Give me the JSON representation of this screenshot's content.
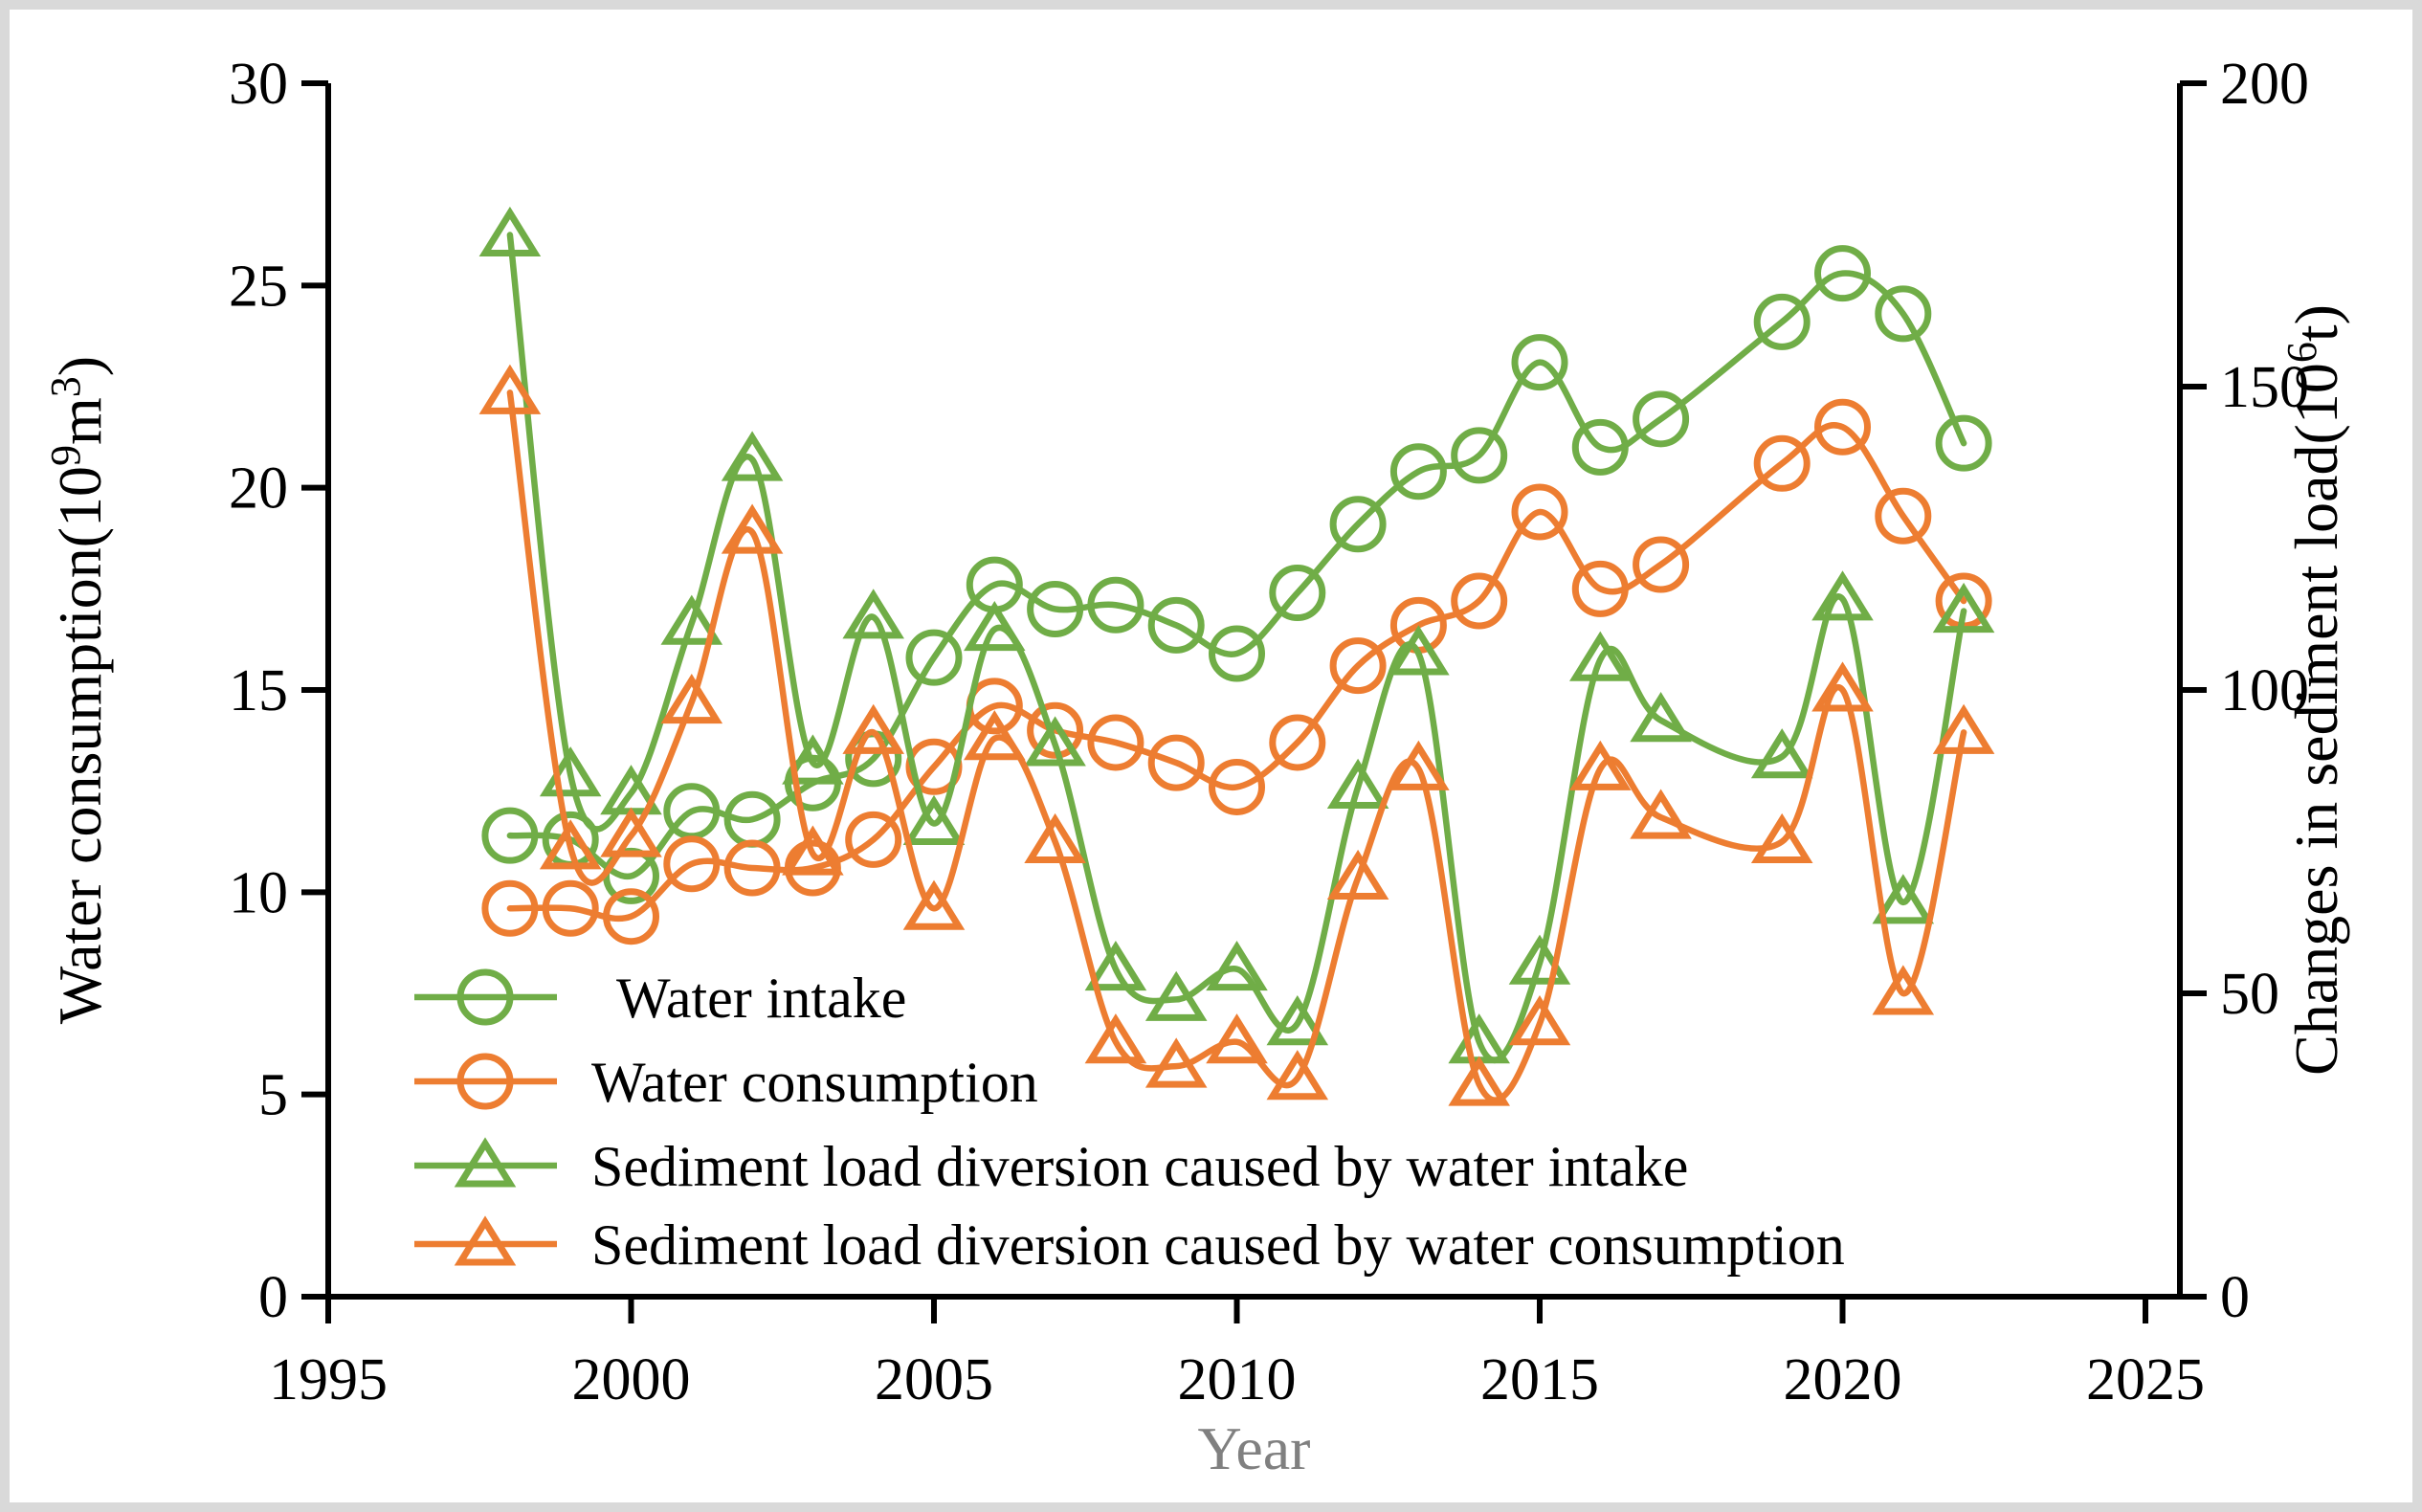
{
  "figure": {
    "border_color": "#d9d9d9",
    "background": "#ffffff",
    "text_color": "#000000",
    "xlabel_color": "#808080"
  },
  "chart_data": {
    "type": "line",
    "title": "",
    "x": [
      1998,
      1999,
      2000,
      2001,
      2002,
      2003,
      2004,
      2005,
      2006,
      2007,
      2008,
      2009,
      2010,
      2011,
      2012,
      2013,
      2014,
      2015,
      2016,
      2017,
      2019,
      2020,
      2021,
      2022
    ],
    "series": [
      {
        "name": "Water intake",
        "axis": "left",
        "color": "#70AD47",
        "marker": "circle",
        "values": [
          11.4,
          11.3,
          10.4,
          12.0,
          11.8,
          12.7,
          13.3,
          15.8,
          17.6,
          17.0,
          17.1,
          16.6,
          15.9,
          17.4,
          19.1,
          20.4,
          20.8,
          23.1,
          21.0,
          21.7,
          24.1,
          25.3,
          24.3,
          21.1
        ]
      },
      {
        "name": "Water consumption",
        "axis": "left",
        "color": "#ED7D31",
        "marker": "circle",
        "values": [
          9.6,
          9.6,
          9.4,
          10.7,
          10.6,
          10.6,
          11.3,
          13.1,
          14.6,
          14.0,
          13.7,
          13.2,
          12.6,
          13.7,
          15.6,
          16.6,
          17.2,
          19.4,
          17.5,
          18.1,
          20.6,
          21.5,
          19.3,
          17.2
        ]
      },
      {
        "name": "Sediment load diversion caused by water intake",
        "axis": "right",
        "color": "#70AD47",
        "marker": "triangle",
        "values": [
          175,
          86,
          83,
          111,
          138,
          88,
          112,
          78,
          110,
          91,
          54,
          49,
          54,
          45,
          84,
          106,
          42,
          55,
          105,
          95,
          89,
          115,
          65,
          113
        ]
      },
      {
        "name": "Sediment load diversion caused by water consumption",
        "axis": "right",
        "color": "#ED7D31",
        "marker": "triangle",
        "values": [
          149,
          74,
          76,
          98,
          126,
          73,
          93,
          64,
          92,
          75,
          42,
          38,
          42,
          36,
          69,
          87,
          35,
          45,
          87,
          79,
          75,
          100,
          50,
          93
        ]
      }
    ],
    "left_axis": {
      "label": "Water consumption(10⁹m³)",
      "ticks": [
        0,
        5,
        10,
        15,
        20,
        25,
        30
      ],
      "range": [
        0,
        30
      ]
    },
    "right_axis": {
      "label": "Changes in sediment load(10⁶t)",
      "ticks": [
        0,
        50,
        100,
        150,
        200
      ],
      "range": [
        0,
        200
      ]
    },
    "x_axis": {
      "label": "Year",
      "ticks": [
        1995,
        2000,
        2005,
        2010,
        2015,
        2020,
        2025
      ],
      "range": [
        1995,
        2025
      ]
    },
    "legend": {
      "position": "inside-lower-left",
      "entries": [
        " Water intake",
        "Water consumption",
        "Sediment load diversion caused by water intake",
        "Sediment load diversion caused by water consumption"
      ]
    },
    "grid": false,
    "smoothed_lines": true
  }
}
